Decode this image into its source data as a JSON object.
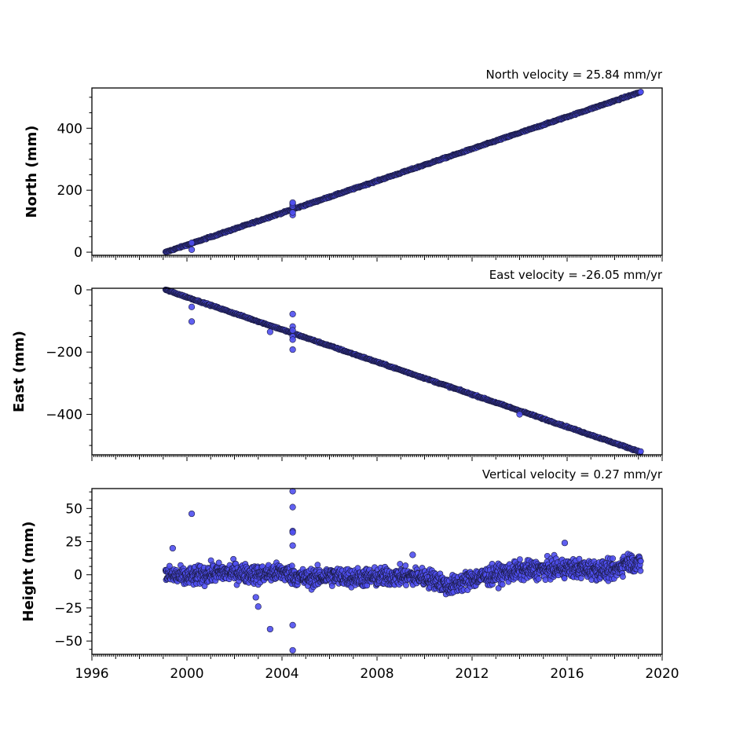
{
  "chart_data": [
    {
      "type": "scatter",
      "title": "North velocity = 25.84 mm/yr",
      "ylabel": "North (mm)",
      "xlim": [
        1996,
        2020
      ],
      "ylim": [
        -10,
        530
      ],
      "yticks": [
        0,
        200,
        400
      ],
      "ytick_labels": [
        "0",
        "200",
        "400"
      ],
      "xticks": [
        1996,
        2000,
        2004,
        2008,
        2012,
        2016,
        2020
      ],
      "series": [
        {
          "color": "#4f4ff0",
          "edgecolor": "#1a1a40",
          "trend": {
            "x_start": 1999.1,
            "y_start": 0,
            "x_end": 2019.1,
            "y_end": 517
          },
          "x": [
            1999.1,
            2000.0,
            2002.0,
            2004.0,
            2006.0,
            2008.0,
            2010.0,
            2012.0,
            2014.0,
            2016.0,
            2018.0,
            2019.1
          ],
          "y": [
            0,
            23,
            75,
            127,
            178,
            230,
            282,
            333,
            385,
            437,
            489,
            517
          ],
          "outliers": [
            {
              "x": 2000.2,
              "y": 8
            },
            {
              "x": 2000.2,
              "y": 30
            },
            {
              "x": 2004.45,
              "y": 120
            },
            {
              "x": 2004.45,
              "y": 128
            },
            {
              "x": 2004.45,
              "y": 148
            },
            {
              "x": 2004.45,
              "y": 155
            },
            {
              "x": 2004.45,
              "y": 160
            }
          ]
        }
      ]
    },
    {
      "type": "scatter",
      "title": "East velocity = -26.05 mm/yr",
      "ylabel": "East (mm)",
      "xlim": [
        1996,
        2020
      ],
      "ylim": [
        -530,
        5
      ],
      "yticks": [
        0,
        -200,
        -400
      ],
      "ytick_labels": [
        "0",
        "−200",
        "−400"
      ],
      "xticks": [
        1996,
        2000,
        2004,
        2008,
        2012,
        2016,
        2020
      ],
      "series": [
        {
          "color": "#4f4ff0",
          "edgecolor": "#1a1a40",
          "trend": {
            "x_start": 1999.1,
            "y_start": 0,
            "x_end": 2019.1,
            "y_end": -521
          },
          "x": [
            1999.1,
            2000.0,
            2002.0,
            2004.0,
            2006.0,
            2008.0,
            2010.0,
            2012.0,
            2014.0,
            2016.0,
            2018.0,
            2019.1
          ],
          "y": [
            0,
            -23,
            -76,
            -128,
            -180,
            -232,
            -284,
            -336,
            -388,
            -440,
            -492,
            -521
          ],
          "outliers": [
            {
              "x": 2000.2,
              "y": -55
            },
            {
              "x": 2000.2,
              "y": -102
            },
            {
              "x": 2003.5,
              "y": -135
            },
            {
              "x": 2004.45,
              "y": -78
            },
            {
              "x": 2004.45,
              "y": -118
            },
            {
              "x": 2004.45,
              "y": -130
            },
            {
              "x": 2004.45,
              "y": -150
            },
            {
              "x": 2004.45,
              "y": -160
            },
            {
              "x": 2004.45,
              "y": -192
            },
            {
              "x": 2014.0,
              "y": -400
            }
          ]
        }
      ]
    },
    {
      "type": "scatter",
      "title": "Vertical velocity = 0.27 mm/yr",
      "ylabel": "Height (mm)",
      "xlim": [
        1996,
        2020
      ],
      "ylim": [
        -60,
        65
      ],
      "yticks": [
        -50,
        -25,
        0,
        25,
        50
      ],
      "ytick_labels": [
        "−50",
        "−25",
        "0",
        "25",
        "50"
      ],
      "xticks": [
        1996,
        2000,
        2004,
        2008,
        2012,
        2016,
        2020
      ],
      "xtick_labels": [
        "1996",
        "2000",
        "2004",
        "2008",
        "2012",
        "2016",
        "2020"
      ],
      "series": [
        {
          "color": "#4f4ff0",
          "edgecolor": "#1a1a40",
          "noise_band": 8,
          "x": [
            1999.1,
            2000.0,
            2001.0,
            2002.0,
            2003.0,
            2004.0,
            2005.0,
            2006.0,
            2007.0,
            2008.0,
            2009.0,
            2010.0,
            2010.5,
            2011.0,
            2011.5,
            2012.0,
            2013.0,
            2014.0,
            2015.0,
            2016.0,
            2017.0,
            2018.0,
            2018.5,
            2019.1
          ],
          "y": [
            0,
            -2,
            1,
            2,
            0,
            2,
            -3,
            -1,
            -2,
            -2,
            -1,
            -2,
            -4,
            -9,
            -6,
            -3,
            0,
            3,
            4,
            5,
            4,
            3,
            10,
            8
          ],
          "outliers": [
            {
              "x": 1999.4,
              "y": 20
            },
            {
              "x": 2000.2,
              "y": 46
            },
            {
              "x": 2002.9,
              "y": -17
            },
            {
              "x": 2003.0,
              "y": -24
            },
            {
              "x": 2003.5,
              "y": -41
            },
            {
              "x": 2004.45,
              "y": 63
            },
            {
              "x": 2004.45,
              "y": 51
            },
            {
              "x": 2004.45,
              "y": 33
            },
            {
              "x": 2004.45,
              "y": 32
            },
            {
              "x": 2004.45,
              "y": 22
            },
            {
              "x": 2004.45,
              "y": -38
            },
            {
              "x": 2004.45,
              "y": -57
            },
            {
              "x": 2009.5,
              "y": 15
            },
            {
              "x": 2015.9,
              "y": 24
            }
          ]
        }
      ]
    }
  ]
}
